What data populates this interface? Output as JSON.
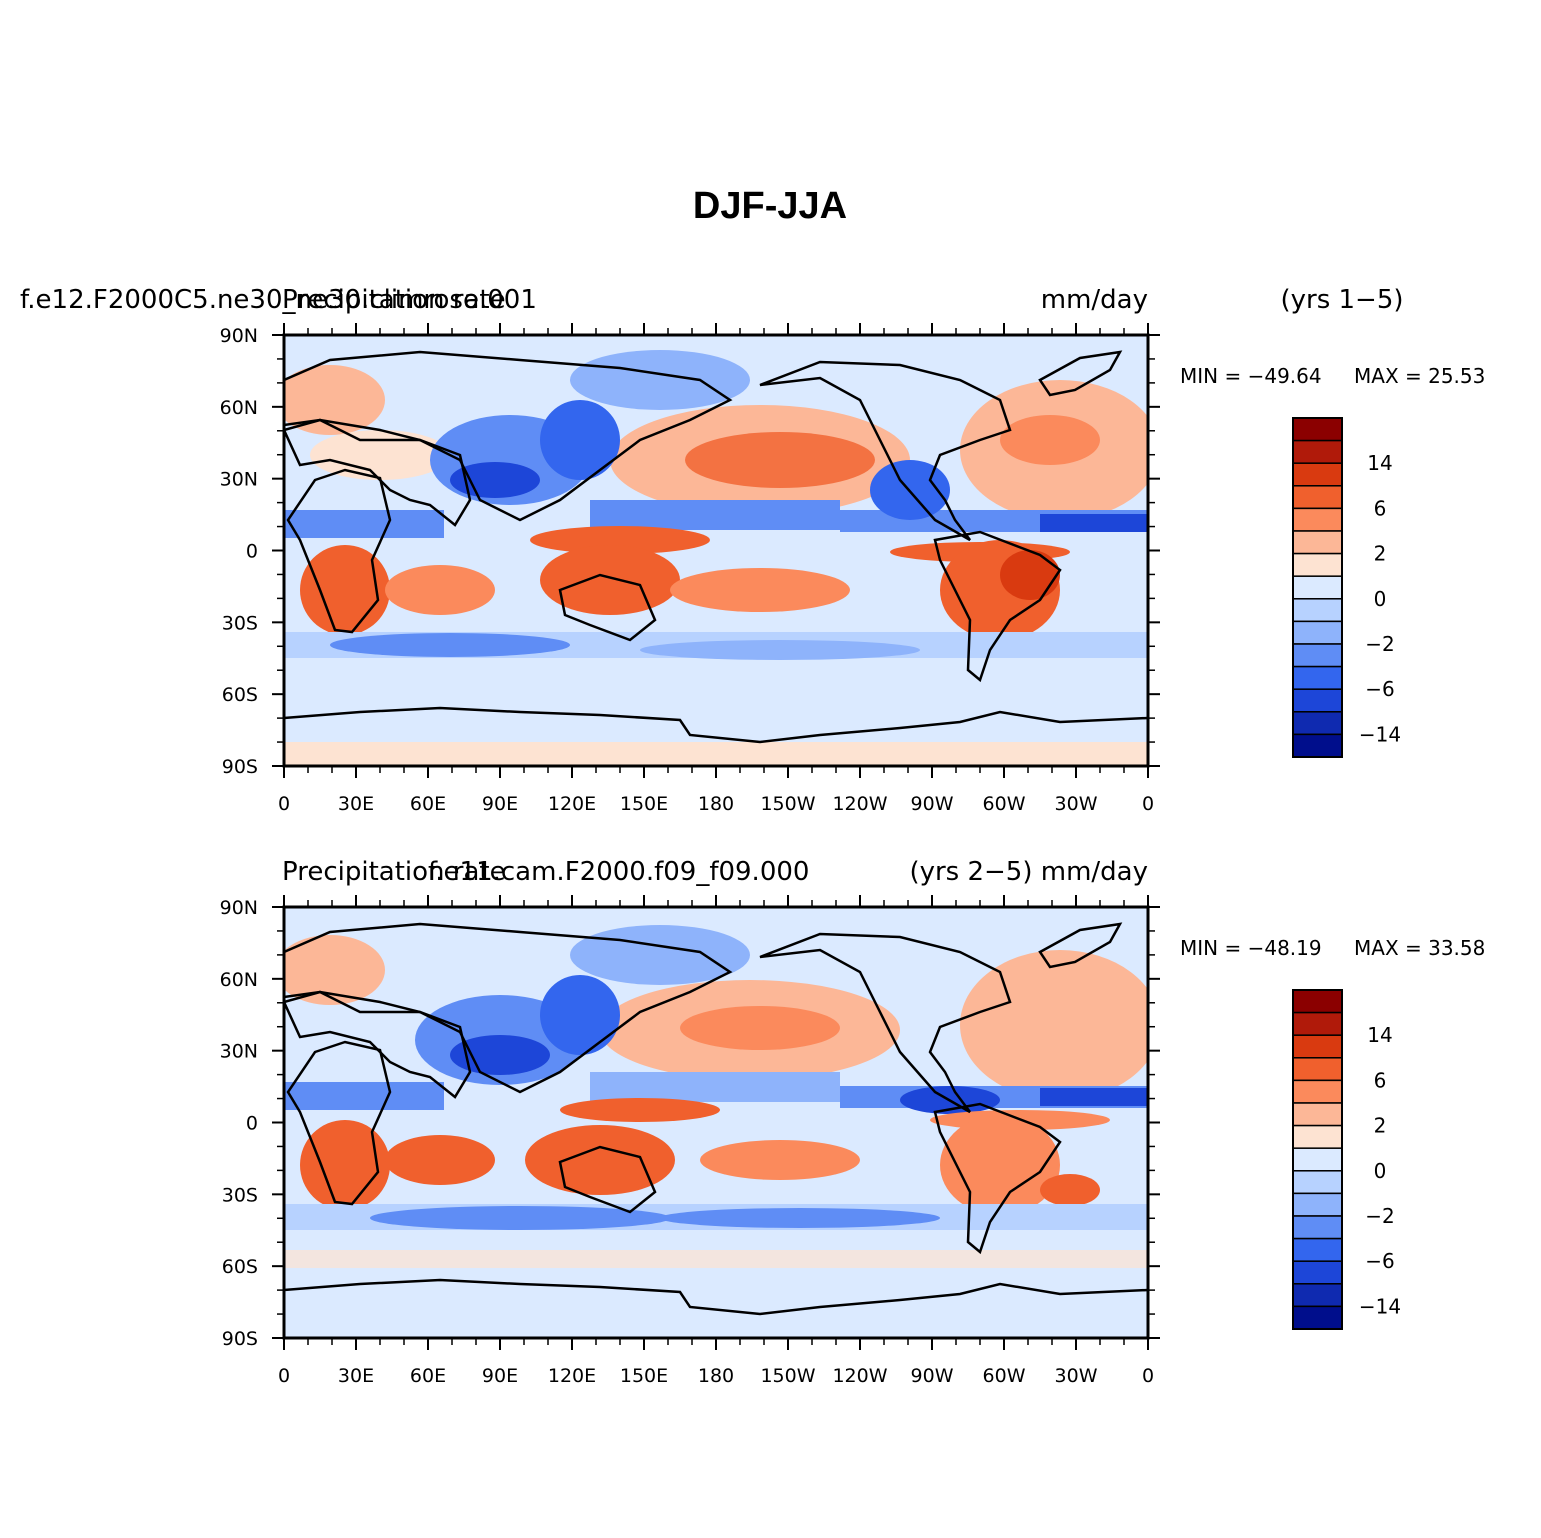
{
  "figure": {
    "title": "DJF-JJA"
  },
  "panels": [
    {
      "left_label_a": "f.e12.F2000C5.ne30_ne30.climrose.001",
      "left_label_b": "Precipitation rate",
      "units": "mm/day",
      "years": "(yrs 1−5)",
      "min_label": "MIN = −49.64",
      "max_label": "MAX =  25.53",
      "min_value": -49.64,
      "max_value": 25.53
    },
    {
      "left_label_a": "Precipitation rate",
      "left_label_b": "f.e11.cam.F2000.f09_f09.000",
      "units": "(yrs 2−5) mm/day",
      "years": "",
      "min_label": "MIN = −48.19",
      "max_label": "MAX =  33.58",
      "min_value": -48.19,
      "max_value": 33.58
    }
  ],
  "axes": {
    "lat_ticks": [
      "90N",
      "60N",
      "30N",
      "0",
      "30S",
      "60S",
      "90S"
    ],
    "lon_ticks": [
      "0",
      "30E",
      "60E",
      "90E",
      "120E",
      "150E",
      "180",
      "150W",
      "120W",
      "90W",
      "60W",
      "30W",
      "0"
    ]
  },
  "colorbar": {
    "labels": [
      "14",
      "6",
      "2",
      "0",
      "−2",
      "−6",
      "−14"
    ],
    "colors": [
      "#8b0000",
      "#b01a0a",
      "#d93a10",
      "#f0602d",
      "#fb8a5c",
      "#fcb797",
      "#fde3d2",
      "#dbeaff",
      "#b7d2ff",
      "#8eb3fb",
      "#5f8df5",
      "#3366ee",
      "#1d46d8",
      "#0f2ab0",
      "#000e8c"
    ]
  }
}
